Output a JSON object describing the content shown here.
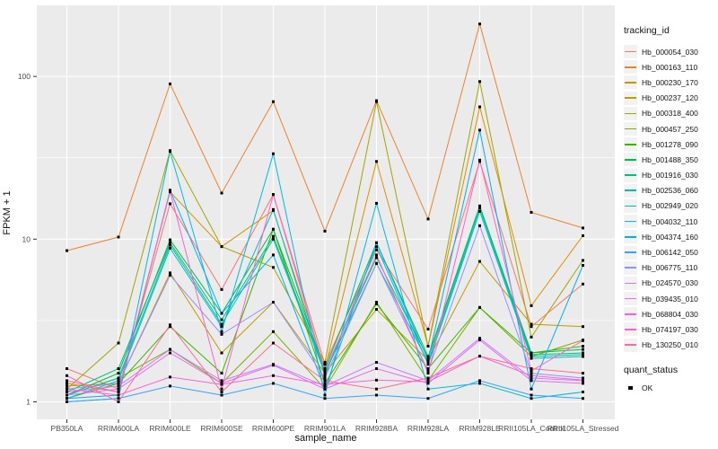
{
  "chart_data": {
    "type": "line",
    "xlabel": "sample_name",
    "ylabel": "FPKM + 1",
    "y_scale": "log10",
    "y_ticks": [
      1,
      10,
      100
    ],
    "y_minor_ticks": [
      3.1623,
      31.623
    ],
    "ylim": [
      1,
      280
    ],
    "grid": "major white on gray panel, minor thin white",
    "legend_position": "right",
    "legend_title": "tracking_id",
    "panel_bg": "#EBEBEB",
    "grid_color": "#FFFFFF",
    "tick_color": "#333333",
    "tick_label_color": "#4D4D4D",
    "point_color": "#000000",
    "categories": [
      "PB350LA",
      "RRIM600LA",
      "RRIM600LE",
      "RRIM600SE",
      "RRIM600PE",
      "RRIM901LA",
      "RRIM928BA",
      "RRIM928LA",
      "RRIM928LE",
      "RRII105LA_Control",
      "RRII105LA_Stressed"
    ],
    "series": [
      {
        "name": "Hb_000054_030",
        "color": "#F8766D",
        "values": [
          1.6,
          1.2,
          16.5,
          4.9,
          18.8,
          1.7,
          8.6,
          2.8,
          30,
          2.9,
          5.3
        ]
      },
      {
        "name": "Hb_000163_110",
        "color": "#EA8331",
        "values": [
          8.5,
          10.3,
          90,
          19.2,
          70,
          11.2,
          71,
          13.3,
          210,
          14.6,
          11.7
        ]
      },
      {
        "name": "Hb_000230_170",
        "color": "#D89000",
        "values": [
          1.3,
          1.15,
          19.5,
          9.0,
          15.0,
          1.6,
          30,
          2.2,
          65,
          3.9,
          10.5
        ]
      },
      {
        "name": "Hb_000237_120",
        "color": "#C09B00",
        "values": [
          1.25,
          1.3,
          6.2,
          2.0,
          4.1,
          1.5,
          3.7,
          1.8,
          7.3,
          3.0,
          2.9
        ]
      },
      {
        "name": "Hb_000318_400",
        "color": "#A3A500",
        "values": [
          1.2,
          2.3,
          35,
          9.0,
          6.7,
          1.75,
          70,
          2.2,
          93,
          2.5,
          7.4
        ]
      },
      {
        "name": "Hb_000457_250",
        "color": "#7CAE00",
        "values": [
          1.1,
          1.4,
          2.1,
          1.3,
          2.7,
          1.2,
          4.1,
          1.35,
          3.8,
          1.9,
          2.4
        ]
      },
      {
        "name": "Hb_001278_090",
        "color": "#39B600",
        "values": [
          1.05,
          1.3,
          2.9,
          1.5,
          11.5,
          1.3,
          4.0,
          1.6,
          3.8,
          2.0,
          2.2
        ]
      },
      {
        "name": "Hb_001488_350",
        "color": "#00BB4E",
        "values": [
          1.1,
          1.5,
          9.9,
          3.5,
          11.5,
          1.6,
          9.5,
          1.9,
          16,
          2.0,
          2.1
        ]
      },
      {
        "name": "Hb_001916_030",
        "color": "#00BF7D",
        "values": [
          1.15,
          1.6,
          9.5,
          3.2,
          10.4,
          1.55,
          7.7,
          1.85,
          15.9,
          1.95,
          2.0
        ]
      },
      {
        "name": "Hb_002536_060",
        "color": "#00C1A3",
        "values": [
          1.1,
          1.4,
          9.2,
          3.0,
          10.0,
          1.5,
          7.1,
          1.75,
          15.5,
          1.9,
          1.95
        ]
      },
      {
        "name": "Hb_002949_020",
        "color": "#00BFC4",
        "values": [
          1.05,
          1.35,
          8.8,
          2.9,
          15.2,
          1.45,
          9.0,
          1.7,
          14.8,
          1.85,
          1.9
        ]
      },
      {
        "name": "Hb_004032_110",
        "color": "#00BAE0",
        "values": [
          1.0,
          1.05,
          34.6,
          2.7,
          33.5,
          1.1,
          16.6,
          1.2,
          1.3,
          1.05,
          1.15
        ]
      },
      {
        "name": "Hb_004374_160",
        "color": "#00B0F6",
        "values": [
          1.05,
          1.1,
          20,
          3.5,
          8.0,
          1.2,
          9.5,
          1.8,
          46.8,
          1.2,
          6.9
        ]
      },
      {
        "name": "Hb_006142_050",
        "color": "#35A2FF",
        "values": [
          1.0,
          1.05,
          1.25,
          1.1,
          1.3,
          1.05,
          1.1,
          1.05,
          1.35,
          1.1,
          1.05
        ]
      },
      {
        "name": "Hb_006775_110",
        "color": "#9590FF",
        "values": [
          1.2,
          1.3,
          6.0,
          2.6,
          4.1,
          1.4,
          7.1,
          1.55,
          12.1,
          1.5,
          1.4
        ]
      },
      {
        "name": "Hb_024570_030",
        "color": "#C77CFF",
        "values": [
          1.15,
          1.25,
          2.1,
          1.35,
          1.7,
          1.25,
          1.75,
          1.35,
          2.46,
          1.4,
          1.35
        ]
      },
      {
        "name": "Hb_039435_010",
        "color": "#E76BF3",
        "values": [
          1.1,
          1.2,
          2.0,
          1.3,
          1.68,
          1.2,
          1.6,
          1.3,
          2.4,
          1.35,
          1.3
        ]
      },
      {
        "name": "Hb_068804_030",
        "color": "#FA62DB",
        "values": [
          1.2,
          1.1,
          1.42,
          1.28,
          1.45,
          1.28,
          1.36,
          1.33,
          1.91,
          1.45,
          1.36
        ]
      },
      {
        "name": "Hb_074197_030",
        "color": "#FF61CC",
        "values": [
          1.35,
          1.15,
          19.6,
          1.2,
          18.8,
          1.55,
          8.0,
          1.5,
          30.6,
          1.55,
          2.38
        ]
      },
      {
        "name": "Hb_130250_010",
        "color": "#FF6A98",
        "values": [
          1.45,
          1.0,
          2.97,
          1.15,
          2.3,
          1.35,
          1.2,
          1.4,
          1.91,
          1.6,
          1.5
        ]
      }
    ],
    "quant_legend": {
      "title": "quant_status",
      "items": [
        {
          "label": "OK",
          "color": "#000000",
          "shape": "square"
        }
      ]
    }
  }
}
